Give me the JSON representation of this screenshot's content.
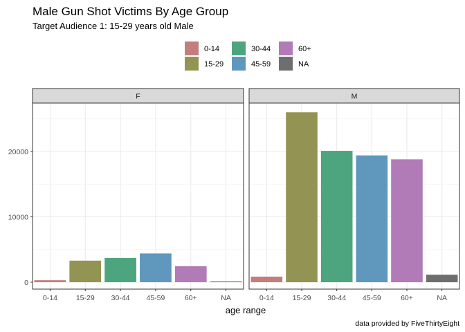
{
  "chart_data": {
    "type": "bar",
    "title": "Male Gun Shot Victims By Age Group",
    "subtitle": "Target Audience 1: 15-29 years old Male",
    "caption": "data provided by FiveThirtyEight",
    "xlabel": "age range",
    "ylabel": "",
    "categories": [
      "0-14",
      "15-29",
      "30-44",
      "45-59",
      "60+",
      "NA"
    ],
    "colors": [
      "#C27D7C",
      "#939453",
      "#4DA57F",
      "#5F97BD",
      "#B17BB7",
      "#6E6E6E"
    ],
    "ylim": [
      0,
      27500
    ],
    "yticks": [
      0,
      10000,
      20000
    ],
    "grid": true,
    "legend": {
      "position": "top",
      "entries": [
        "0-14",
        "15-29",
        "30-44",
        "45-59",
        "60+",
        "NA"
      ]
    },
    "facets": [
      {
        "label": "F",
        "values": [
          300,
          3300,
          3700,
          4400,
          2450,
          120
        ]
      },
      {
        "label": "M",
        "values": [
          850,
          26000,
          20100,
          19400,
          18800,
          1150
        ]
      }
    ]
  }
}
